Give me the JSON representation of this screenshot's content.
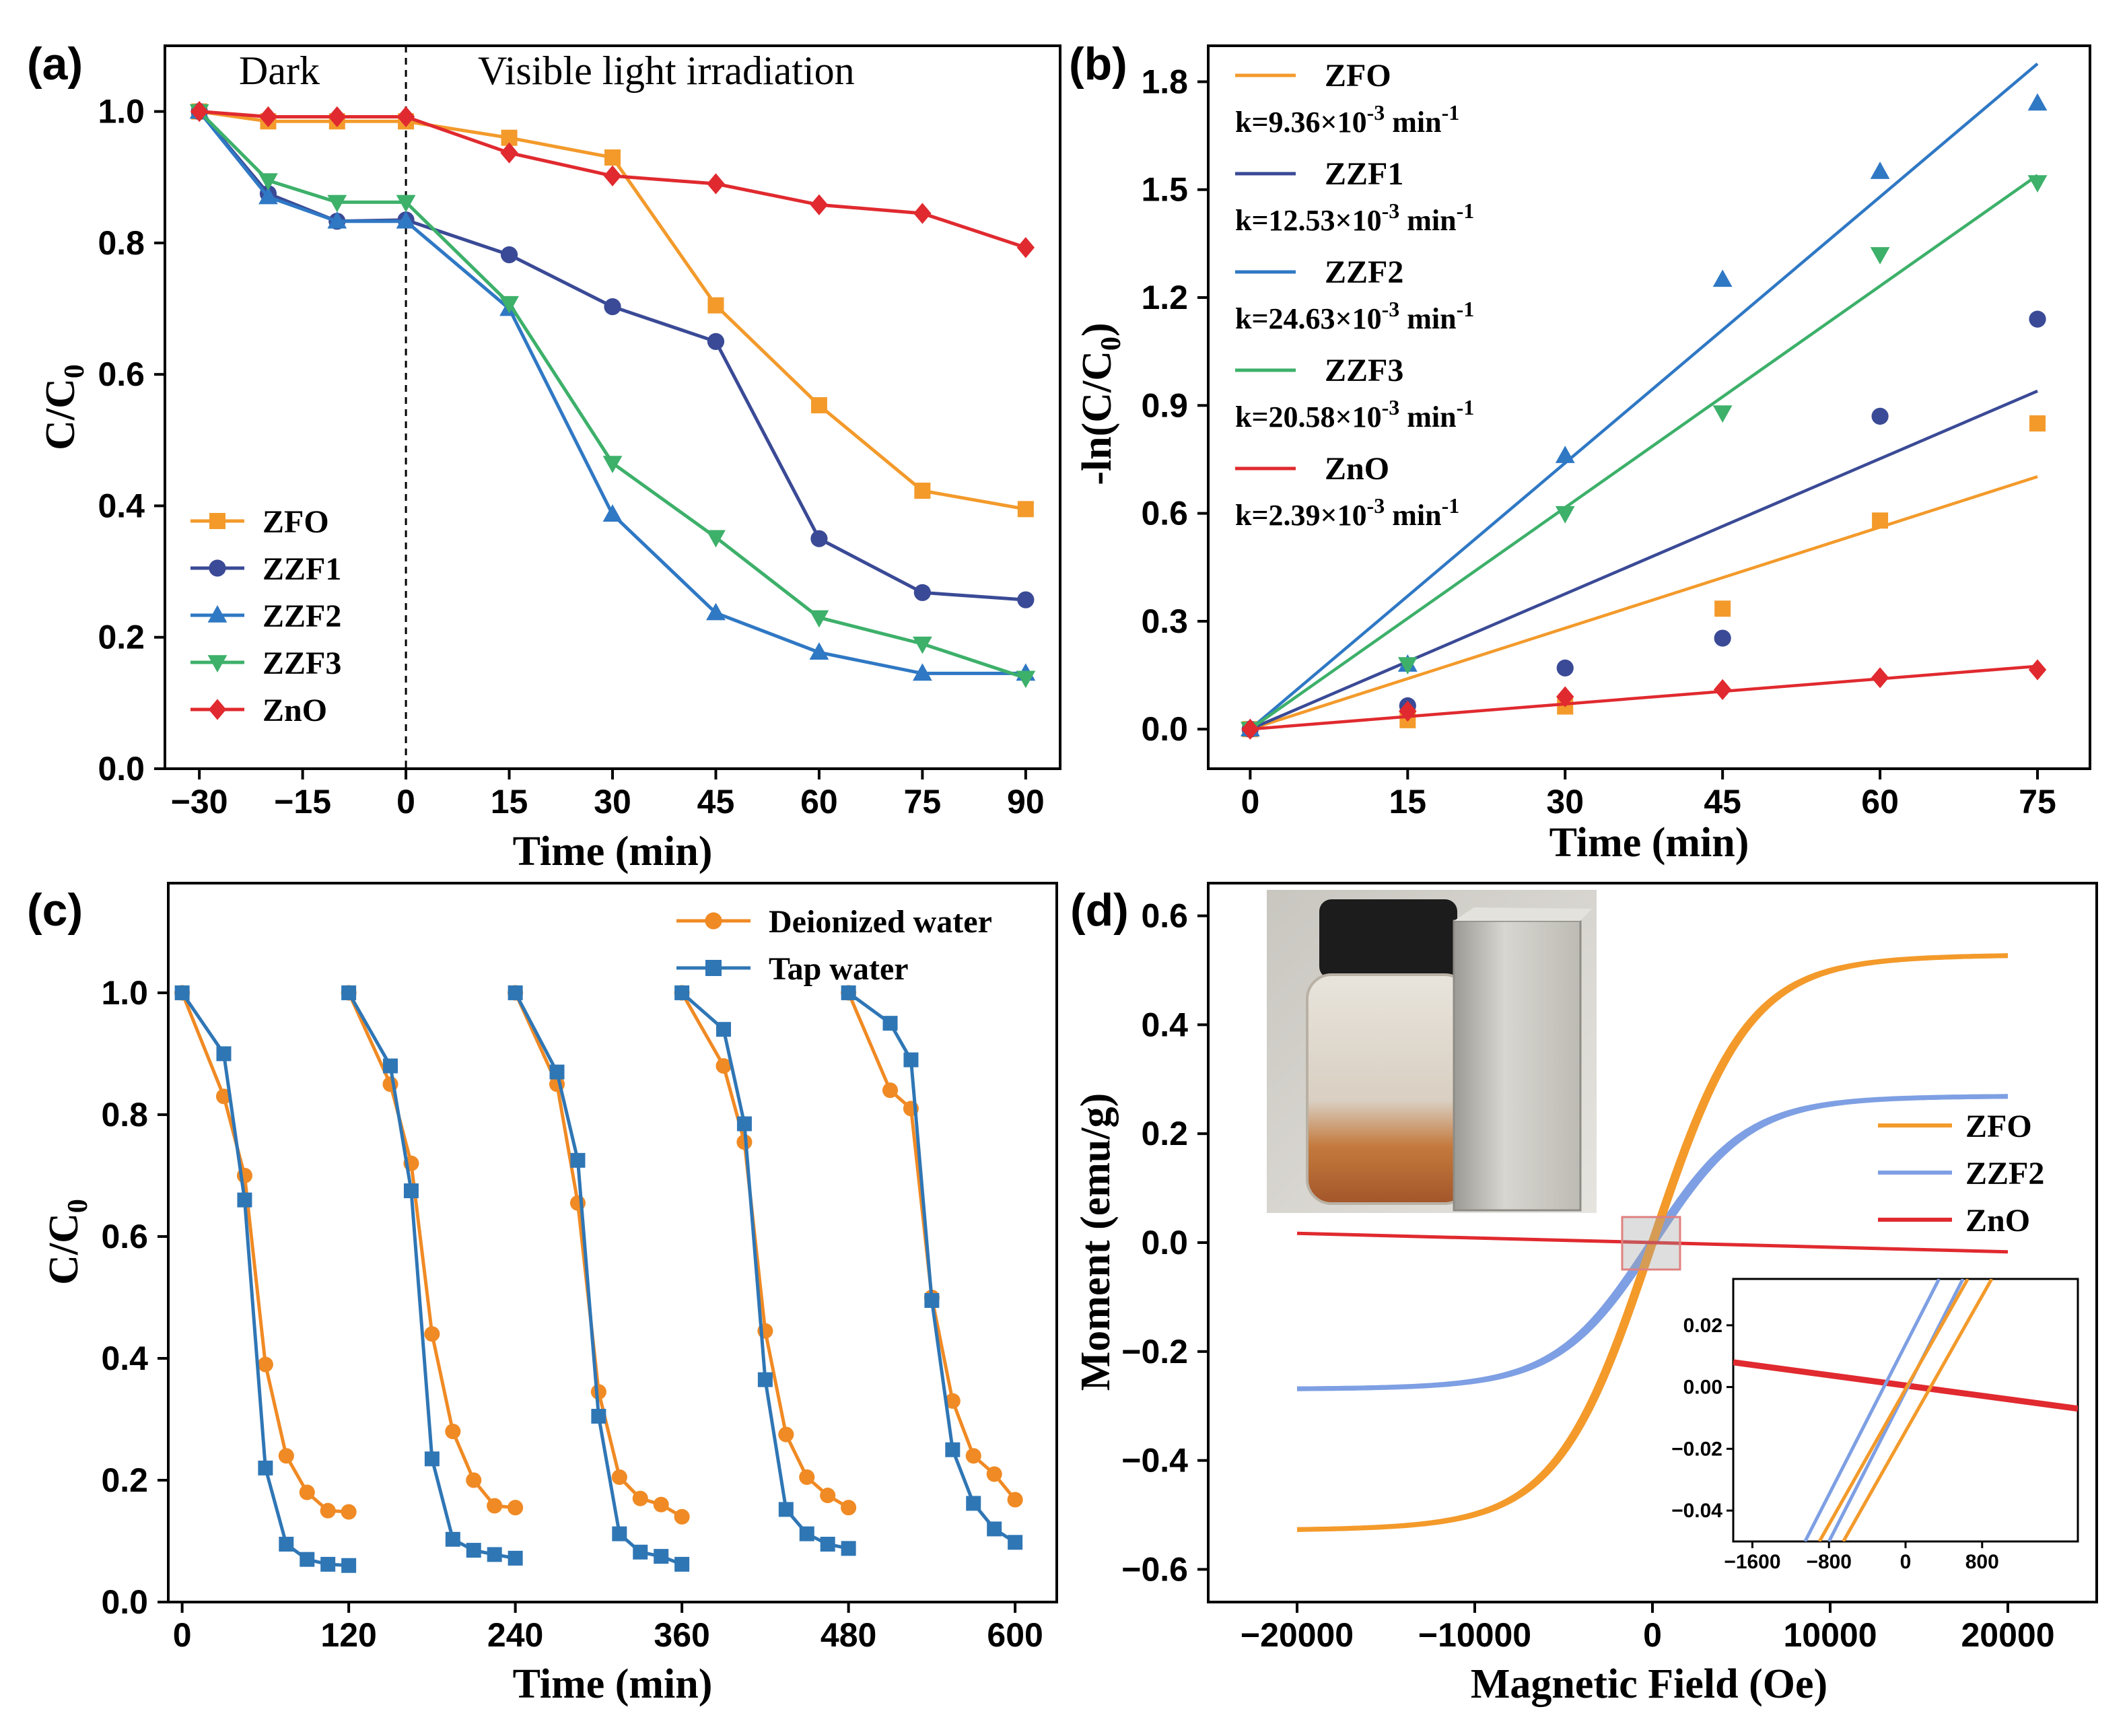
{
  "colors": {
    "ZFO": "#f39a2b",
    "ZZF1": "#3a4a96",
    "ZZF2": "#2f78c4",
    "ZZF3": "#3db06a",
    "ZnO": "#e02a2f",
    "ZZF2_mag": "#7e9fe3",
    "deionized": "#f08a24",
    "tap": "#2f76b5"
  },
  "chart_data": [
    {
      "panel": "(a)",
      "type": "line",
      "xlabel": "Time (min)",
      "ylabel": "C/C",
      "ylabel_sub": "0",
      "xlim": [
        -35,
        95
      ],
      "ylim": [
        0.0,
        1.1
      ],
      "xticks": [
        -30,
        -15,
        0,
        15,
        30,
        45,
        60,
        75,
        90
      ],
      "xtick_labels": [
        "−30",
        "−15",
        "0",
        "15",
        "30",
        "45",
        "60",
        "75",
        "90"
      ],
      "yticks": [
        0.0,
        0.2,
        0.4,
        0.6,
        0.8,
        1.0
      ],
      "ytick_labels": [
        "0.0",
        "0.2",
        "0.4",
        "0.6",
        "0.8",
        "1.0"
      ],
      "annotations": [
        "Dark",
        "Visible light irradiation"
      ],
      "divider_x": 0,
      "x": [
        -30,
        -20,
        -10,
        0,
        15,
        30,
        45,
        60,
        75,
        90
      ],
      "series": [
        {
          "name": "ZFO",
          "marker": "square",
          "values": [
            1.0,
            0.985,
            0.985,
            0.985,
            0.96,
            0.93,
            0.705,
            0.553,
            0.423,
            0.395
          ]
        },
        {
          "name": "ZZF1",
          "marker": "circle",
          "values": [
            1.0,
            0.875,
            0.833,
            0.835,
            0.782,
            0.703,
            0.65,
            0.35,
            0.268,
            0.257
          ]
        },
        {
          "name": "ZZF2",
          "marker": "triangle-up",
          "values": [
            1.0,
            0.87,
            0.833,
            0.833,
            0.7,
            0.387,
            0.237,
            0.177,
            0.145,
            0.145
          ]
        },
        {
          "name": "ZZF3",
          "marker": "triangle-down",
          "values": [
            1.0,
            0.895,
            0.862,
            0.862,
            0.708,
            0.465,
            0.352,
            0.23,
            0.19,
            0.138
          ]
        },
        {
          "name": "ZnO",
          "marker": "diamond",
          "values": [
            1.0,
            0.992,
            0.992,
            0.992,
            0.937,
            0.902,
            0.89,
            0.858,
            0.845,
            0.793
          ]
        }
      ]
    },
    {
      "panel": "(b)",
      "type": "scatter",
      "xlabel": "Time (min)",
      "ylabel": "-ln(C/C",
      "ylabel_sub": "0",
      "ylabel_close": ")",
      "xlim": [
        -4,
        80
      ],
      "ylim": [
        -0.11,
        1.9
      ],
      "xticks": [
        0,
        15,
        30,
        45,
        60,
        75
      ],
      "xtick_labels": [
        "0",
        "15",
        "30",
        "45",
        "60",
        "75"
      ],
      "yticks": [
        0.0,
        0.3,
        0.6,
        0.9,
        1.2,
        1.5,
        1.8
      ],
      "ytick_labels": [
        "0.0",
        "0.3",
        "0.6",
        "0.9",
        "1.2",
        "1.5",
        "1.8"
      ],
      "x": [
        0,
        15,
        30,
        45,
        60,
        75
      ],
      "series": [
        {
          "name": "ZFO",
          "marker": "square",
          "k_label": "k=9.36×10",
          "k_exp": "-3",
          "k_unit": " min",
          "k_unit_exp": "-1",
          "values": [
            0,
            0.025,
            0.063,
            0.335,
            0.58,
            0.85
          ],
          "fit_end": 0.702
        },
        {
          "name": "ZZF1",
          "marker": "circle",
          "k_label": "k=12.53×10",
          "k_exp": "-3",
          "k_unit": " min",
          "k_unit_exp": "-1",
          "values": [
            0,
            0.065,
            0.17,
            0.253,
            0.87,
            1.14
          ],
          "fit_end": 0.94
        },
        {
          "name": "ZZF2",
          "marker": "triangle-up",
          "k_label": "k=24.63×10",
          "k_exp": "-3",
          "k_unit": " min",
          "k_unit_exp": "-1",
          "values": [
            0,
            0.18,
            0.76,
            1.25,
            1.55,
            1.74
          ],
          "fit_end": 1.85
        },
        {
          "name": "ZZF3",
          "marker": "triangle-down",
          "k_label": "k=20.58×10",
          "k_exp": "-3",
          "k_unit": " min",
          "k_unit_exp": "-1",
          "values": [
            0,
            0.18,
            0.6,
            0.88,
            1.32,
            1.52
          ],
          "fit_end": 1.54
        },
        {
          "name": "ZnO",
          "marker": "diamond",
          "k_label": "k=2.39×10",
          "k_exp": "-3",
          "k_unit": " min",
          "k_unit_exp": "-1",
          "values": [
            0,
            0.05,
            0.09,
            0.11,
            0.143,
            0.165
          ],
          "fit_end": 0.175
        }
      ]
    },
    {
      "panel": "(c)",
      "type": "line",
      "xlabel": "Time (min)",
      "ylabel": "C/C",
      "ylabel_sub": "0",
      "xlim": [
        -10,
        630
      ],
      "ylim": [
        0.0,
        1.18
      ],
      "xticks": [
        0,
        120,
        240,
        360,
        480,
        600
      ],
      "xtick_labels": [
        "0",
        "120",
        "240",
        "360",
        "480",
        "600"
      ],
      "yticks": [
        0.0,
        0.2,
        0.4,
        0.6,
        0.8,
        1.0
      ],
      "ytick_labels": [
        "0.0",
        "0.2",
        "0.4",
        "0.6",
        "0.8",
        "1.0"
      ],
      "cycle_x": [
        0,
        30,
        45,
        60,
        75,
        90,
        105,
        120
      ],
      "series": [
        {
          "name": "Deionized water",
          "marker": "circle",
          "cycles": [
            [
              1.0,
              0.83,
              0.7,
              0.39,
              0.24,
              0.18,
              0.15,
              0.148
            ],
            [
              1.0,
              0.85,
              0.72,
              0.44,
              0.28,
              0.2,
              0.158,
              0.155
            ],
            [
              1.0,
              0.85,
              0.655,
              0.345,
              0.205,
              0.17,
              0.16,
              0.14
            ],
            [
              1.0,
              0.88,
              0.755,
              0.445,
              0.275,
              0.205,
              0.175,
              0.155
            ],
            [
              1.0,
              0.84,
              0.81,
              0.5,
              0.33,
              0.24,
              0.21,
              0.168
            ]
          ]
        },
        {
          "name": "Tap water",
          "marker": "square",
          "cycles": [
            [
              1.0,
              0.9,
              0.66,
              0.22,
              0.095,
              0.07,
              0.062,
              0.06
            ],
            [
              1.0,
              0.88,
              0.675,
              0.235,
              0.103,
              0.085,
              0.078,
              0.072
            ],
            [
              1.0,
              0.87,
              0.725,
              0.305,
              0.112,
              0.082,
              0.075,
              0.062
            ],
            [
              1.0,
              0.94,
              0.785,
              0.365,
              0.152,
              0.112,
              0.095,
              0.088
            ],
            [
              1.0,
              0.95,
              0.89,
              0.495,
              0.25,
              0.162,
              0.12,
              0.098
            ]
          ]
        }
      ]
    },
    {
      "panel": "(d)",
      "type": "line",
      "xlabel": "Magnetic Field (Oe)",
      "ylabel": "Moment (emu/g)",
      "xlim": [
        -25000,
        25000
      ],
      "ylim": [
        -0.66,
        0.66
      ],
      "xticks": [
        -20000,
        -10000,
        0,
        10000,
        20000
      ],
      "xtick_labels": [
        "−20000",
        "−10000",
        "0",
        "10000",
        "20000"
      ],
      "yticks": [
        -0.6,
        -0.4,
        -0.2,
        0.0,
        0.2,
        0.4,
        0.6
      ],
      "ytick_labels": [
        "−0.6",
        "−0.4",
        "−0.2",
        "0.0",
        "0.2",
        "0.4",
        "0.6"
      ],
      "series": [
        {
          "name": "ZFO",
          "Ms": 0.53,
          "coercivity_oe": 120
        },
        {
          "name": "ZZF2",
          "Ms": 0.27,
          "coercivity_oe": 150
        },
        {
          "name": "ZnO",
          "slope_emu_per_kOe": -0.00085
        }
      ],
      "inset": {
        "xlim": [
          -1800,
          1800
        ],
        "ylim": [
          -0.05,
          0.035
        ],
        "xticks": [
          -1600,
          -800,
          0,
          800
        ],
        "xtick_labels": [
          "−1600",
          "−800",
          "0",
          "800"
        ],
        "yticks": [
          0.02,
          0.0,
          -0.02,
          -0.04
        ],
        "ytick_labels": [
          "0.02",
          "0.00",
          "−0.02",
          "−0.04"
        ]
      },
      "photo_description": "vial with magnet"
    }
  ],
  "panel_labels": [
    "(a)",
    "(b)",
    "(c)",
    "(d)"
  ]
}
